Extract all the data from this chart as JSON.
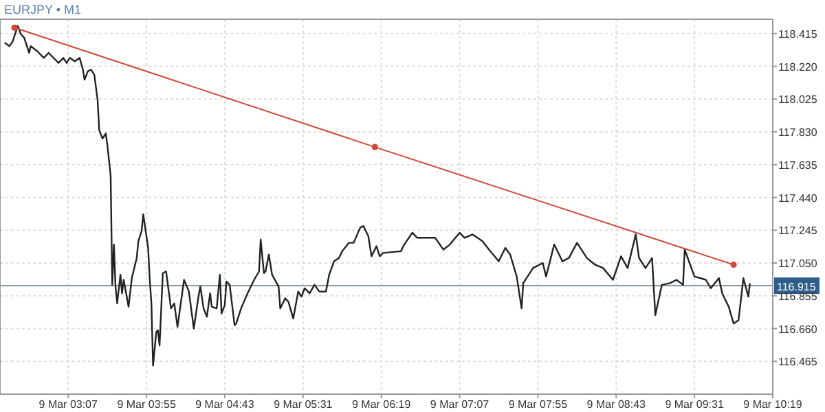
{
  "chart_data": {
    "type": "line",
    "title": "EURJPY • M1",
    "xlim": [
      "--03-09T02:26",
      "--03-09T10:19"
    ],
    "ylim": [
      116.27,
      118.5
    ],
    "xticks": [
      {
        "value": "--03-09T03:07",
        "label": "9 Mar 03:07"
      },
      {
        "value": "--03-09T03:55",
        "label": "9 Mar 03:55"
      },
      {
        "value": "--03-09T04:43",
        "label": "9 Mar 04:43"
      },
      {
        "value": "--03-09T05:31",
        "label": "9 Mar 05:31"
      },
      {
        "value": "--03-09T06:19",
        "label": "9 Mar 06:19"
      },
      {
        "value": "--03-09T07:07",
        "label": "9 Mar 07:07"
      },
      {
        "value": "--03-09T07:55",
        "label": "9 Mar 07:55"
      },
      {
        "value": "--03-09T08:43",
        "label": "9 Mar 08:43"
      },
      {
        "value": "--03-09T09:31",
        "label": "9 Mar 09:31"
      },
      {
        "value": "--03-09T10:19",
        "label": "9 Mar 10:19"
      }
    ],
    "yticks": [
      {
        "value": 116.465,
        "label": "116.465"
      },
      {
        "value": 116.66,
        "label": "116.660"
      },
      {
        "value": 116.855,
        "label": "116.855"
      },
      {
        "value": 117.05,
        "label": "117.050"
      },
      {
        "value": 117.245,
        "label": "117.245"
      },
      {
        "value": 117.44,
        "label": "117.440"
      },
      {
        "value": 117.635,
        "label": "117.635"
      },
      {
        "value": 117.83,
        "label": "117.830"
      },
      {
        "value": 118.025,
        "label": "118.025"
      },
      {
        "value": 118.22,
        "label": "118.220"
      },
      {
        "value": 118.415,
        "label": "118.415"
      }
    ],
    "grid": true,
    "ref_lines": [
      {
        "axis": "y",
        "value": 116.915,
        "label": "116.915",
        "color": "#8a9aa6"
      }
    ],
    "series": [
      {
        "color": "#222222",
        "marker": "none",
        "x": [
          "--03-09T02:28",
          "--03-09T02:31",
          "--03-09T02:33",
          "--03-09T02:36",
          "--03-09T02:38",
          "--03-09T02:40",
          "--03-09T02:43",
          "--03-09T02:44",
          "--03-09T02:48",
          "--03-09T02:52",
          "--03-09T02:55",
          "--03-09T02:59",
          "--03-09T03:01",
          "--03-09T03:04",
          "--03-09T03:06",
          "--03-09T03:08",
          "--03-09T03:11",
          "--03-09T03:14",
          "--03-09T03:16",
          "--03-09T03:17",
          "--03-09T03:19",
          "--03-09T03:21",
          "--03-09T03:23",
          "--03-09T03:25",
          "--03-09T03:26",
          "--03-09T03:28",
          "--03-09T03:30",
          "--03-09T03:31",
          "--03-09T03:33",
          "--03-09T03:34",
          "--03-09T03:35",
          "--03-09T03:36",
          "--03-09T03:37",
          "--03-09T03:39",
          "--03-09T03:40",
          "--03-09T03:41",
          "--03-09T03:44",
          "--03-09T03:46",
          "--03-09T03:49",
          "--03-09T03:50",
          "--03-09T03:52",
          "--03-09T03:53",
          "--03-09T03:56",
          "--03-09T03:57",
          "--03-09T03:58",
          "--03-09T03:59",
          "--03-09T04:01",
          "--03-09T04:02",
          "--03-09T04:03",
          "--03-09T04:05",
          "--03-09T04:07",
          "--03-09T04:10",
          "--03-09T04:12",
          "--03-09T04:14",
          "--03-09T04:18",
          "--03-09T04:21",
          "--03-09T04:24",
          "--03-09T04:27",
          "--03-09T04:28",
          "--03-09T04:30",
          "--03-09T04:32",
          "--03-09T04:34",
          "--03-09T04:35",
          "--03-09T04:38",
          "--03-09T04:40",
          "--03-09T04:41",
          "--03-09T04:43",
          "--03-09T04:44",
          "--03-09T04:46",
          "--03-09T04:49",
          "--03-09T04:50",
          "--03-09T04:53",
          "--03-09T04:57",
          "--03-09T05:01",
          "--03-09T05:04",
          "--03-09T05:05",
          "--03-09T05:07",
          "--03-09T05:08",
          "--03-09T05:10",
          "--03-09T05:12",
          "--03-09T05:16",
          "--03-09T05:17",
          "--03-09T05:20",
          "--03-09T05:22",
          "--03-09T05:25",
          "--03-09T05:28",
          "--03-09T05:30",
          "--03-09T05:32",
          "--03-09T05:35",
          "--03-09T05:38",
          "--03-09T05:41",
          "--03-09T05:45",
          "--03-09T05:47",
          "--03-09T05:50",
          "--03-09T05:53",
          "--03-09T05:55",
          "--03-09T05:59",
          "--03-09T06:02",
          "--03-09T06:06",
          "--03-09T06:08",
          "--03-09T06:11",
          "--03-09T06:13",
          "--03-09T06:16",
          "--03-09T06:18",
          "--03-09T06:20",
          "--03-09T06:31",
          "--03-09T06:33",
          "--03-09T06:38",
          "--03-09T06:41",
          "--03-09T06:47",
          "--03-09T06:52",
          "--03-09T06:57",
          "--03-09T07:01",
          "--03-09T07:07",
          "--03-09T07:10",
          "--03-09T07:15",
          "--03-09T07:21",
          "--03-09T07:25",
          "--03-09T07:31",
          "--03-09T07:35",
          "--03-09T07:38",
          "--03-09T07:42",
          "--03-09T07:45",
          "--03-09T07:46",
          "--03-09T07:52",
          "--03-09T07:58",
          "--03-09T08:00",
          "--03-09T08:05",
          "--03-09T08:10",
          "--03-09T08:14",
          "--03-09T08:19",
          "--03-09T08:25",
          "--03-09T08:30",
          "--03-09T08:35",
          "--03-09T08:41",
          "--03-09T08:46",
          "--03-09T08:50",
          "--03-09T08:55",
          "--03-09T08:57",
          "--03-09T09:01",
          "--03-09T09:05",
          "--03-09T09:07",
          "--03-09T09:11",
          "--03-09T09:16",
          "--03-09T09:20",
          "--03-09T09:24",
          "--03-09T09:25",
          "--03-09T09:28",
          "--03-09T09:31",
          "--03-09T09:38",
          "--03-09T09:41",
          "--03-09T09:46",
          "--03-09T09:48",
          "--03-09T09:52",
          "--03-09T09:55",
          "--03-09T09:58",
          "--03-09T10:01",
          "--03-09T10:04",
          "--03-09T10:05"
        ],
        "values": [
          118.36,
          118.34,
          118.37,
          118.46,
          118.41,
          118.39,
          118.3,
          118.34,
          118.31,
          118.27,
          118.3,
          118.26,
          118.24,
          118.27,
          118.24,
          118.27,
          118.25,
          118.27,
          118.2,
          118.14,
          118.19,
          118.2,
          118.17,
          118.02,
          117.84,
          117.79,
          117.82,
          117.75,
          117.57,
          116.92,
          117.16,
          116.91,
          116.81,
          116.98,
          116.87,
          116.95,
          116.79,
          116.96,
          117.08,
          117.18,
          117.24,
          117.34,
          117.14,
          116.95,
          116.81,
          116.44,
          116.64,
          116.65,
          116.56,
          116.99,
          117.0,
          116.78,
          116.81,
          116.67,
          116.95,
          116.88,
          116.66,
          116.86,
          116.91,
          116.78,
          116.73,
          116.87,
          116.79,
          116.78,
          116.98,
          116.75,
          116.8,
          116.94,
          116.92,
          116.68,
          116.69,
          116.78,
          116.87,
          116.95,
          117.0,
          117.19,
          116.99,
          117.0,
          117.1,
          116.98,
          116.91,
          116.78,
          116.84,
          116.82,
          116.72,
          116.88,
          116.85,
          116.9,
          116.87,
          116.92,
          116.88,
          116.88,
          116.98,
          117.06,
          117.08,
          117.12,
          117.17,
          117.17,
          117.26,
          117.27,
          117.21,
          117.09,
          117.15,
          117.09,
          117.11,
          117.12,
          117.16,
          117.23,
          117.2,
          117.2,
          117.2,
          117.13,
          117.16,
          117.23,
          117.2,
          117.22,
          117.18,
          117.13,
          117.06,
          117.14,
          117.1,
          116.97,
          116.78,
          116.93,
          117.02,
          117.05,
          116.97,
          117.16,
          117.06,
          117.08,
          117.17,
          117.08,
          117.04,
          117.02,
          116.95,
          117.09,
          117.02,
          117.22,
          117.08,
          117.02,
          117.08,
          116.74,
          116.92,
          116.93,
          116.95,
          116.92,
          117.13,
          117.05,
          116.97,
          116.95,
          116.9,
          116.96,
          116.87,
          116.79,
          116.69,
          116.71,
          116.96,
          116.85,
          116.93
        ]
      },
      {
        "color": "#d04a3a",
        "marker": "circle",
        "x": [
          "--03-09T02:34",
          "--03-09T06:15",
          "--03-09T09:55"
        ],
        "values": [
          118.45,
          117.74,
          117.04
        ]
      }
    ]
  }
}
